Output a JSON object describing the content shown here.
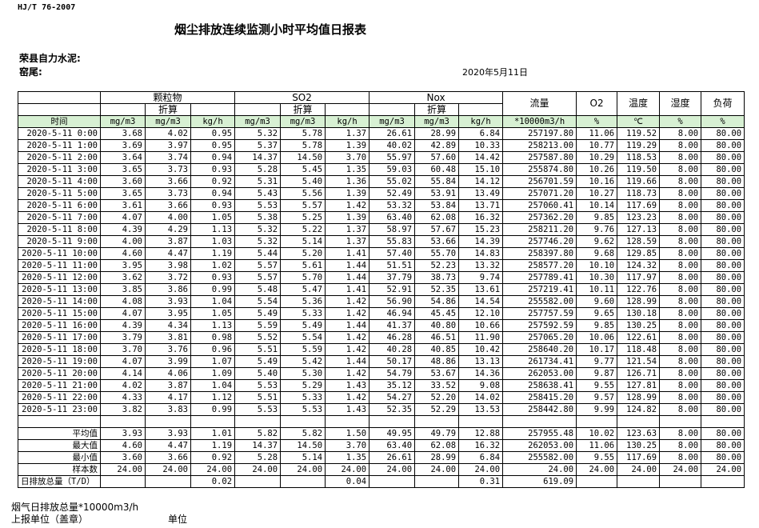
{
  "header": {
    "code": "HJ/T  76-2007",
    "title": "烟尘排放连续监测小时平均值日报表",
    "company": "荣县自力水泥:",
    "kiln": "窑尾:",
    "date": "2020年5月11日"
  },
  "table": {
    "groups": {
      "pm": "颗粒物",
      "so2": "SO2",
      "nox": "Nox",
      "flow": "流量",
      "o2": "O2",
      "temp": "温度",
      "humidity": "湿度",
      "load": "负荷"
    },
    "converted": "折算",
    "units": [
      "时间",
      "mg/m3",
      "mg/m3",
      "kg/h",
      "mg/m3",
      "mg/m3",
      "kg/h",
      "mg/m3",
      "mg/m3",
      "kg/h",
      "*10000m3/h",
      "%",
      "℃",
      "%",
      "%"
    ],
    "rows": [
      [
        "2020-5-11 0:00",
        "3.68",
        "4.02",
        "0.95",
        "5.32",
        "5.78",
        "1.37",
        "26.61",
        "28.99",
        "6.84",
        "257197.80",
        "11.06",
        "119.52",
        "8.00",
        "80.00"
      ],
      [
        "2020-5-11 1:00",
        "3.69",
        "3.97",
        "0.95",
        "5.37",
        "5.78",
        "1.39",
        "40.02",
        "42.89",
        "10.33",
        "258213.00",
        "10.77",
        "119.29",
        "8.00",
        "80.00"
      ],
      [
        "2020-5-11 2:00",
        "3.64",
        "3.74",
        "0.94",
        "14.37",
        "14.50",
        "3.70",
        "55.97",
        "57.60",
        "14.42",
        "257587.80",
        "10.29",
        "118.53",
        "8.00",
        "80.00"
      ],
      [
        "2020-5-11 3:00",
        "3.65",
        "3.73",
        "0.93",
        "5.28",
        "5.45",
        "1.35",
        "59.03",
        "60.48",
        "15.10",
        "255874.80",
        "10.26",
        "119.50",
        "8.00",
        "80.00"
      ],
      [
        "2020-5-11 4:00",
        "3.60",
        "3.66",
        "0.92",
        "5.31",
        "5.40",
        "1.36",
        "55.02",
        "55.84",
        "14.12",
        "256701.59",
        "10.16",
        "119.66",
        "8.00",
        "80.00"
      ],
      [
        "2020-5-11 5:00",
        "3.65",
        "3.73",
        "0.94",
        "5.43",
        "5.56",
        "1.39",
        "52.49",
        "53.91",
        "13.49",
        "257071.20",
        "10.27",
        "118.73",
        "8.00",
        "80.00"
      ],
      [
        "2020-5-11 6:00",
        "3.61",
        "3.66",
        "0.93",
        "5.53",
        "5.57",
        "1.42",
        "53.32",
        "53.84",
        "13.71",
        "257060.41",
        "10.14",
        "117.69",
        "8.00",
        "80.00"
      ],
      [
        "2020-5-11 7:00",
        "4.07",
        "4.00",
        "1.05",
        "5.38",
        "5.25",
        "1.39",
        "63.40",
        "62.08",
        "16.32",
        "257362.20",
        "9.85",
        "123.23",
        "8.00",
        "80.00"
      ],
      [
        "2020-5-11 8:00",
        "4.39",
        "4.29",
        "1.13",
        "5.32",
        "5.22",
        "1.37",
        "58.97",
        "57.67",
        "15.23",
        "258211.20",
        "9.76",
        "127.13",
        "8.00",
        "80.00"
      ],
      [
        "2020-5-11 9:00",
        "4.00",
        "3.87",
        "1.03",
        "5.32",
        "5.14",
        "1.37",
        "55.83",
        "53.66",
        "14.39",
        "257746.20",
        "9.62",
        "128.59",
        "8.00",
        "80.00"
      ],
      [
        "2020-5-11 10:00",
        "4.60",
        "4.47",
        "1.19",
        "5.44",
        "5.20",
        "1.41",
        "57.40",
        "55.70",
        "14.83",
        "258397.80",
        "9.68",
        "129.85",
        "8.00",
        "80.00"
      ],
      [
        "2020-5-11 11:00",
        "3.95",
        "3.98",
        "1.02",
        "5.57",
        "5.61",
        "1.44",
        "51.51",
        "52.23",
        "13.32",
        "258577.20",
        "10.10",
        "124.32",
        "8.00",
        "80.00"
      ],
      [
        "2020-5-11 12:00",
        "3.62",
        "3.72",
        "0.93",
        "5.57",
        "5.70",
        "1.44",
        "37.79",
        "38.73",
        "9.74",
        "257789.41",
        "10.30",
        "117.97",
        "8.00",
        "80.00"
      ],
      [
        "2020-5-11 13:00",
        "3.85",
        "3.86",
        "0.99",
        "5.48",
        "5.47",
        "1.41",
        "52.91",
        "52.35",
        "13.61",
        "257219.41",
        "10.11",
        "122.76",
        "8.00",
        "80.00"
      ],
      [
        "2020-5-11 14:00",
        "4.08",
        "3.93",
        "1.04",
        "5.54",
        "5.36",
        "1.42",
        "56.90",
        "54.86",
        "14.54",
        "255582.00",
        "9.60",
        "128.99",
        "8.00",
        "80.00"
      ],
      [
        "2020-5-11 15:00",
        "4.07",
        "3.95",
        "1.05",
        "5.49",
        "5.33",
        "1.42",
        "46.94",
        "45.45",
        "12.10",
        "257757.59",
        "9.65",
        "130.18",
        "8.00",
        "80.00"
      ],
      [
        "2020-5-11 16:00",
        "4.39",
        "4.34",
        "1.13",
        "5.59",
        "5.49",
        "1.44",
        "41.37",
        "40.80",
        "10.66",
        "257592.59",
        "9.85",
        "130.25",
        "8.00",
        "80.00"
      ],
      [
        "2020-5-11 17:00",
        "3.79",
        "3.81",
        "0.98",
        "5.52",
        "5.54",
        "1.42",
        "46.28",
        "46.51",
        "11.90",
        "257065.20",
        "10.06",
        "122.61",
        "8.00",
        "80.00"
      ],
      [
        "2020-5-11 18:00",
        "3.70",
        "3.76",
        "0.96",
        "5.51",
        "5.59",
        "1.42",
        "40.28",
        "40.85",
        "10.42",
        "258640.20",
        "10.17",
        "118.48",
        "8.00",
        "80.00"
      ],
      [
        "2020-5-11 19:00",
        "4.07",
        "3.99",
        "1.07",
        "5.49",
        "5.42",
        "1.44",
        "50.17",
        "48.86",
        "13.13",
        "261734.41",
        "9.77",
        "121.54",
        "8.00",
        "80.00"
      ],
      [
        "2020-5-11 20:00",
        "4.14",
        "4.06",
        "1.09",
        "5.40",
        "5.30",
        "1.42",
        "54.79",
        "53.67",
        "14.36",
        "262053.00",
        "9.87",
        "126.71",
        "8.00",
        "80.00"
      ],
      [
        "2020-5-11 21:00",
        "4.02",
        "3.87",
        "1.04",
        "5.53",
        "5.29",
        "1.43",
        "35.12",
        "33.52",
        "9.08",
        "258638.41",
        "9.55",
        "127.81",
        "8.00",
        "80.00"
      ],
      [
        "2020-5-11 22:00",
        "4.33",
        "4.17",
        "1.12",
        "5.51",
        "5.33",
        "1.42",
        "54.27",
        "52.20",
        "14.02",
        "258415.20",
        "9.57",
        "128.99",
        "8.00",
        "80.00"
      ],
      [
        "2020-5-11 23:00",
        "3.82",
        "3.83",
        "0.99",
        "5.53",
        "5.53",
        "1.43",
        "52.35",
        "52.29",
        "13.53",
        "258442.80",
        "9.99",
        "124.82",
        "8.00",
        "80.00"
      ]
    ],
    "stats": [
      {
        "label": "平均值",
        "values": [
          "3.93",
          "3.93",
          "1.01",
          "5.82",
          "5.82",
          "1.50",
          "49.95",
          "49.79",
          "12.88",
          "257955.48",
          "10.02",
          "123.63",
          "8.00",
          "80.00"
        ]
      },
      {
        "label": "最大值",
        "values": [
          "4.60",
          "4.47",
          "1.19",
          "14.37",
          "14.50",
          "3.70",
          "63.40",
          "62.08",
          "16.32",
          "262053.00",
          "11.06",
          "130.25",
          "8.00",
          "80.00"
        ]
      },
      {
        "label": "最小值",
        "values": [
          "3.60",
          "3.66",
          "0.92",
          "5.28",
          "5.14",
          "1.35",
          "26.61",
          "28.99",
          "6.84",
          "255582.00",
          "9.55",
          "117.69",
          "8.00",
          "80.00"
        ]
      },
      {
        "label": "样本数",
        "values": [
          "24.00",
          "24.00",
          "24.00",
          "24.00",
          "24.00",
          "24.00",
          "24.00",
          "24.00",
          "24.00",
          "24.00",
          "24.00",
          "24.00",
          "24.00",
          "24.00"
        ]
      }
    ],
    "total": {
      "label": "日排放总量（T/D）",
      "pm_kgh": "0.02",
      "so2_kgh": "0.04",
      "nox_kgh": "0.31",
      "flow": "619.09"
    }
  },
  "footer": {
    "flue_total": "烟气日排放总量*10000m3/h",
    "reporter": "上报单位（盖章）",
    "unit": "单位"
  }
}
